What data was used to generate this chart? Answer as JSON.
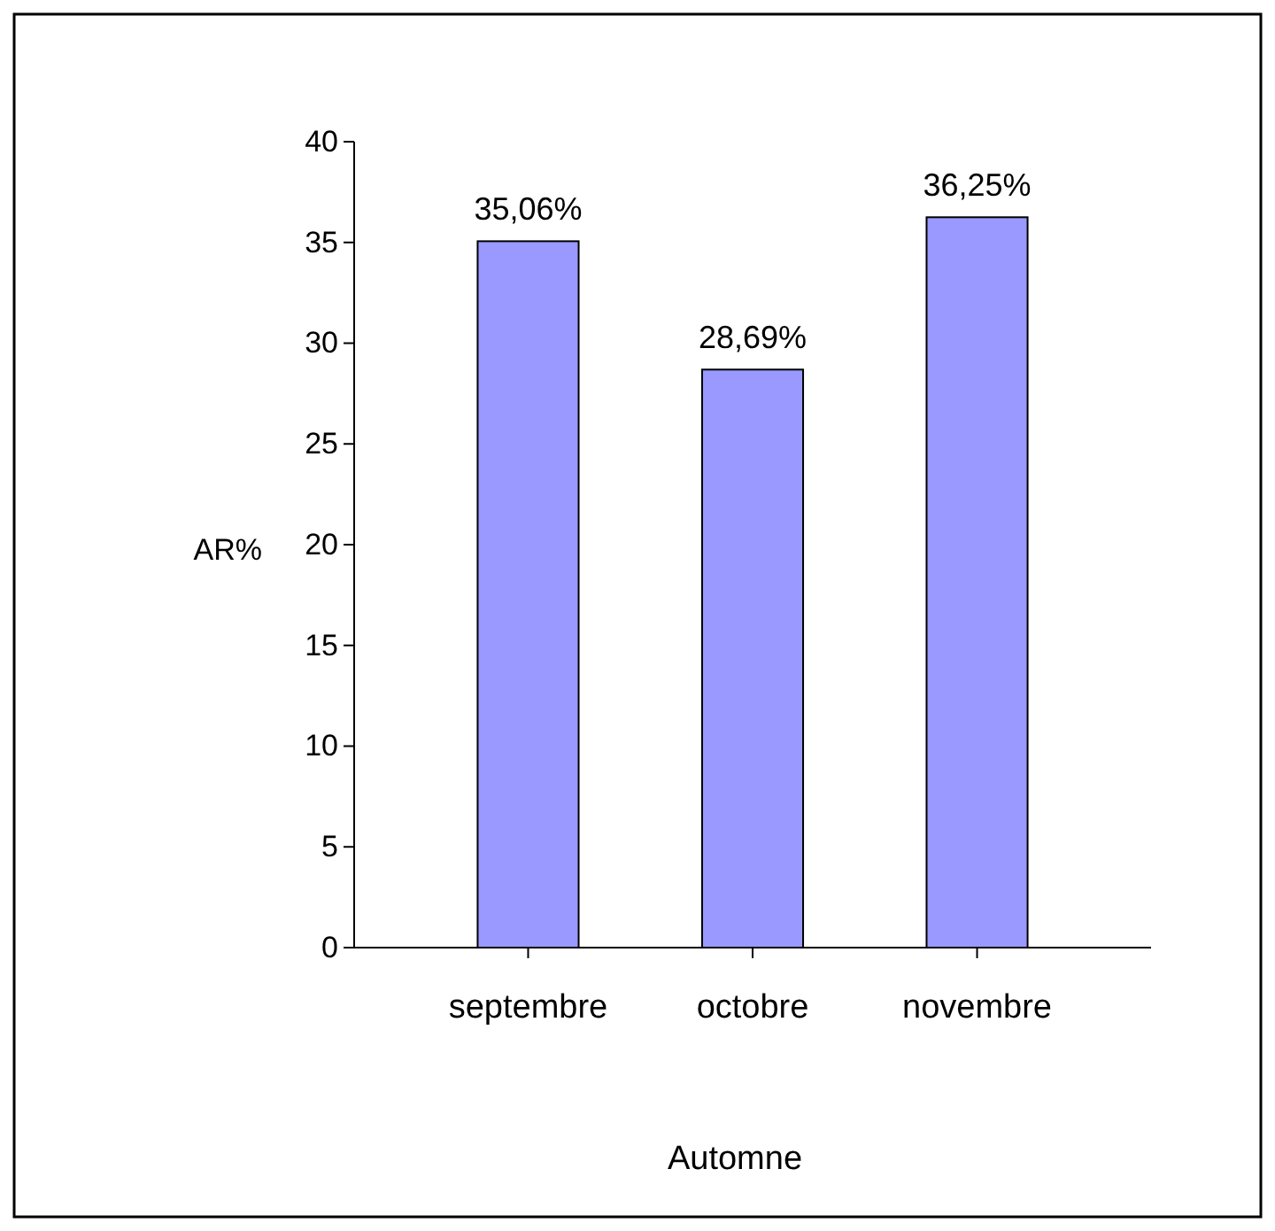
{
  "chart_data": {
    "type": "bar",
    "xlabel": "Automne",
    "ylabel": "AR%",
    "categories": [
      "septembre",
      "octobre",
      "novembre"
    ],
    "values": [
      35.06,
      28.69,
      36.25
    ],
    "color": "#9999ff",
    "value_labels": [
      "35,06%",
      "28,69%",
      "36,25%"
    ],
    "ylim": [
      0,
      40
    ],
    "yticks": [
      0,
      5,
      10,
      15,
      20,
      25,
      30,
      35,
      40
    ],
    "grid": false
  }
}
